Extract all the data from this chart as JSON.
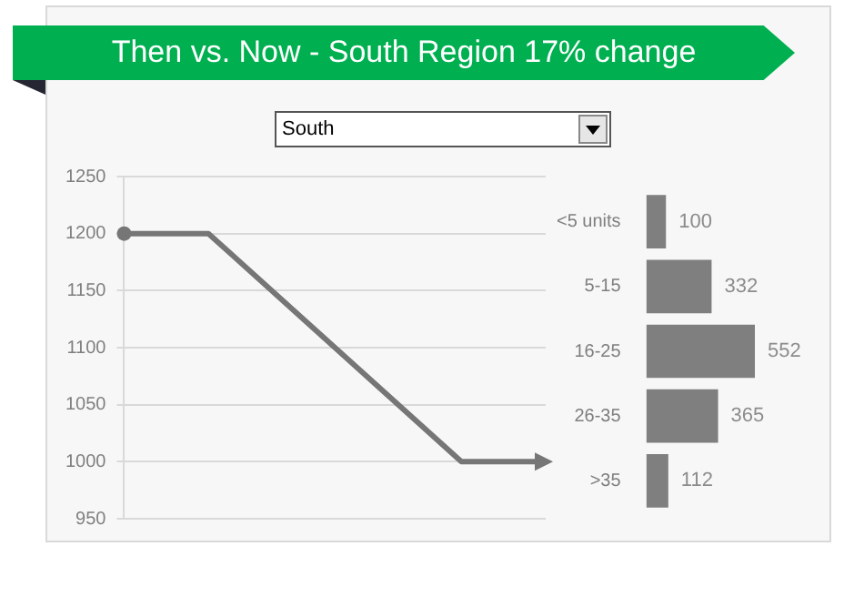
{
  "chart_data": [
    {
      "type": "line",
      "title": "Then vs. Now - South Region 17% change",
      "annotations": [
        "South"
      ],
      "categories": [
        null,
        null,
        null,
        null,
        null,
        null
      ],
      "series": [
        {
          "color": "#767676",
          "values": [
            1200,
            1200,
            null,
            null,
            1000,
            1000
          ]
        }
      ],
      "ylim": [
        950,
        1250
      ],
      "yticks": [
        950,
        1000,
        1050,
        1100,
        1150,
        1200,
        1250
      ],
      "grid": "y",
      "tick_labels": "y",
      "legend": false
    },
    {
      "type": "bar",
      "orientation": "horizontal",
      "categories": [
        "<5 units",
        "5-15",
        "16-25",
        "26-35",
        ">35"
      ],
      "values": [
        100,
        332,
        552,
        365,
        112
      ],
      "color": "#7f7f7f",
      "data_labels": true,
      "legend": false
    }
  ]
}
